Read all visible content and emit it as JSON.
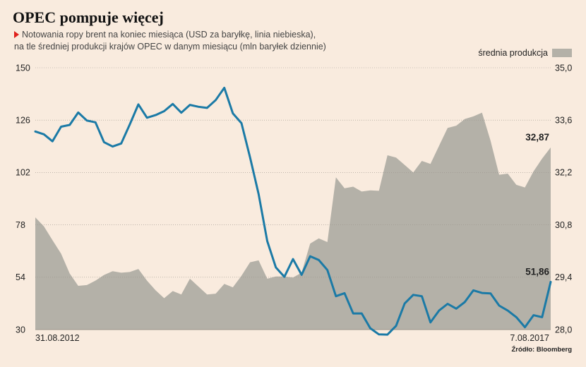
{
  "header": {
    "title": "OPEC pompuje więcej",
    "subtitle_line1": "Notowania ropy brent na koniec miesiąca (USD za baryłkę, linia niebieska),",
    "subtitle_line2": "na tle średniej produkcji krajów OPEC w danym miesiącu (mln baryłek dziennie)"
  },
  "legend": {
    "area_label": "średnia produkcja"
  },
  "source": "Źródło: Bloomberg",
  "colors": {
    "line": "#1b7aa6",
    "area": "#b4b1a8",
    "background": "#f9ebde",
    "accent": "#e0201c"
  },
  "chart_data": {
    "type": "line",
    "x_start_label": "31.08.2012",
    "x_end_label": "7.08.2017",
    "left_axis": {
      "ticks": [
        "150",
        "126",
        "102",
        "78",
        "54",
        "30"
      ],
      "range": [
        30,
        150
      ]
    },
    "right_axis": {
      "ticks": [
        "35,0",
        "33,6",
        "32,2",
        "30,8",
        "29,4",
        "28,0"
      ],
      "range": [
        28.0,
        35.0
      ]
    },
    "series": [
      {
        "axis": "left",
        "end_label": "51,86",
        "values": [
          120.8,
          119.5,
          116.3,
          123.0,
          123.8,
          129.5,
          125.8,
          125.0,
          115.9,
          113.9,
          115.3,
          124.0,
          133.2,
          127.1,
          128.3,
          130.1,
          133.4,
          129.4,
          133.0,
          132.1,
          131.6,
          135.2,
          140.8,
          129.1,
          124.6,
          108.9,
          92.1,
          70.6,
          58.5,
          54.2,
          62.3,
          55.1,
          63.6,
          61.9,
          57.3,
          45.3,
          46.7,
          37.4,
          37.4,
          30.6,
          27.8,
          27.7,
          31.7,
          42.0,
          45.9,
          45.3,
          33.3,
          38.7,
          41.8,
          39.6,
          42.6,
          48.0,
          46.8,
          46.6,
          41.0,
          38.7,
          35.7,
          31.1,
          36.6,
          35.7,
          51.86
        ]
      },
      {
        "axis": "right",
        "end_label": "32,87",
        "values": [
          31.0,
          30.76,
          30.39,
          30.03,
          29.5,
          29.17,
          29.19,
          29.31,
          29.46,
          29.56,
          29.52,
          29.54,
          29.62,
          29.31,
          29.05,
          28.84,
          29.03,
          28.94,
          29.36,
          29.15,
          28.94,
          28.96,
          29.22,
          29.13,
          29.44,
          29.8,
          29.85,
          29.36,
          29.42,
          29.42,
          29.39,
          29.52,
          30.3,
          30.44,
          30.34,
          32.07,
          31.78,
          31.82,
          31.69,
          31.72,
          31.71,
          32.66,
          32.6,
          32.4,
          32.2,
          32.51,
          32.43,
          32.91,
          33.39,
          33.45,
          33.63,
          33.7,
          33.8,
          33.05,
          32.14,
          32.17,
          31.87,
          31.8,
          32.23,
          32.57,
          32.87
        ]
      }
    ]
  }
}
